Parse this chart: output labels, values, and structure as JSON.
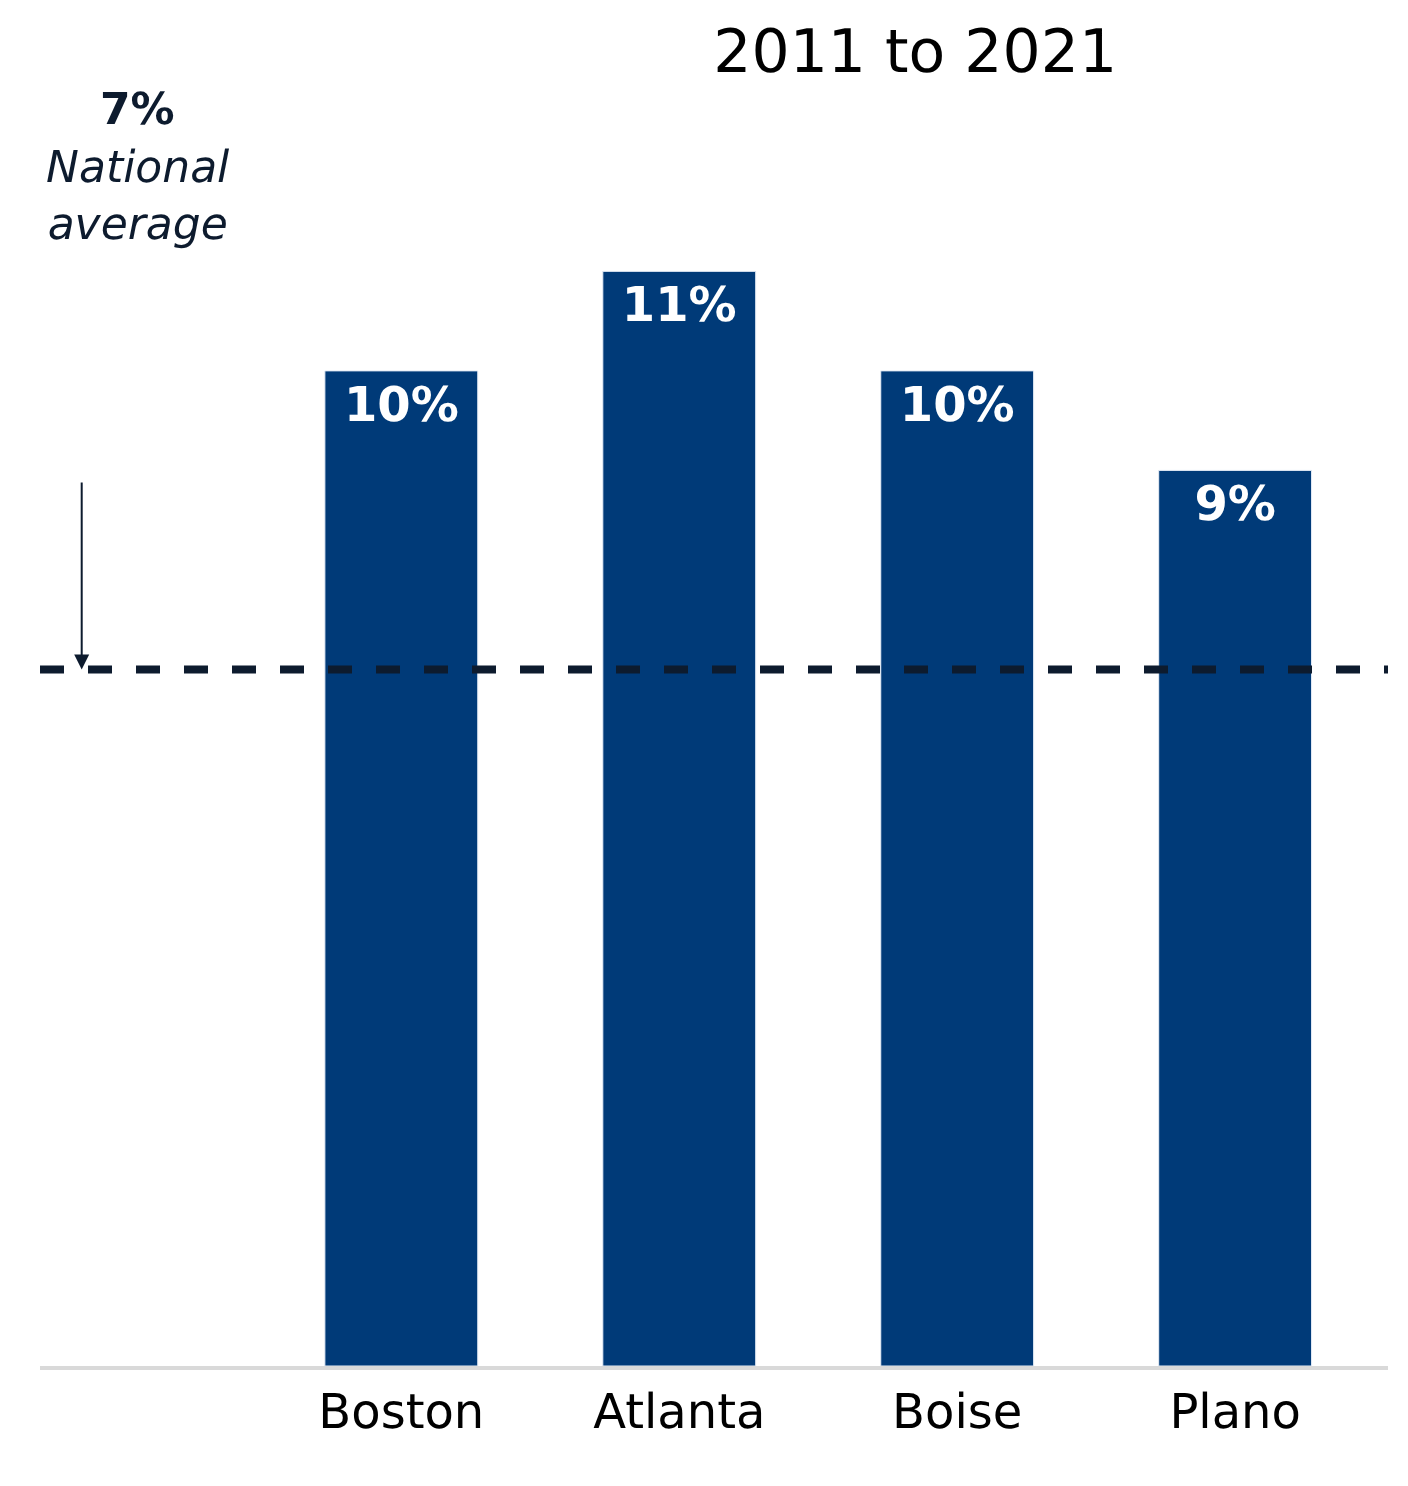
{
  "chart_data": {
    "type": "bar",
    "title": "2011 to 2021",
    "categories": [
      "Boston",
      "Atlanta",
      "Boise",
      "Plano"
    ],
    "values": [
      10,
      11,
      10,
      9
    ],
    "value_labels": [
      "10%",
      "11%",
      "10%",
      "9%"
    ],
    "color": "#003a78",
    "ref_lines": [
      {
        "axis": "y",
        "value": 7,
        "label": "7%",
        "color": "#0d1b2e",
        "line_style": "dashed"
      }
    ],
    "annotations": [
      "National average"
    ],
    "legend": false
  }
}
